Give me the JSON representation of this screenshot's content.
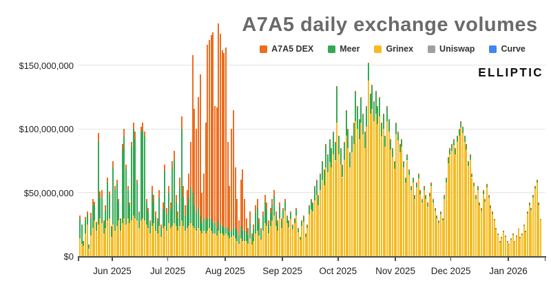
{
  "title": "A7A5 daily exchange volumes",
  "watermark": "ELLIPTIC",
  "legend": [
    {
      "label": "A7A5 DEX",
      "color": "#ED6C1E"
    },
    {
      "label": "Meer",
      "color": "#34A853"
    },
    {
      "label": "Grinex",
      "color": "#F5BB21"
    },
    {
      "label": "Uniswap",
      "color": "#9AA0A6"
    },
    {
      "label": "Curve",
      "color": "#4285F4"
    }
  ],
  "chart_data": {
    "type": "bar",
    "subtype": "stacked-daily-bars",
    "unit": "USD, values in millions",
    "start_date_approx": "2025-05-14",
    "frequency": "daily",
    "n_days": 250,
    "grid": true,
    "legend_position": "top-center",
    "ylim": [
      0,
      185000000
    ],
    "y_ticks": [
      {
        "label": "$0",
        "value_millions": 0
      },
      {
        "label": "$50,000,000",
        "value_millions": 50
      },
      {
        "label": "$100,000,000",
        "value_millions": 100
      },
      {
        "label": "$150,000,000",
        "value_millions": 150
      }
    ],
    "x_ticks": [
      {
        "label": "Jun 2025",
        "day_index": 18
      },
      {
        "label": "Jul 2025",
        "day_index": 48
      },
      {
        "label": "Aug 2025",
        "day_index": 79
      },
      {
        "label": "Sep 2025",
        "day_index": 110
      },
      {
        "label": "Oct 2025",
        "day_index": 140
      },
      {
        "label": "Nov 2025",
        "day_index": 171
      },
      {
        "label": "Dec 2025",
        "day_index": 201
      },
      {
        "label": "Jan 2026",
        "day_index": 232
      }
    ],
    "stack_order_bottom_to_top": [
      "Grinex",
      "Meer",
      "A7A5 DEX"
    ],
    "series": [
      {
        "name": "A7A5 DEX",
        "color": "#ED6C1E",
        "values_millions": [
          2,
          0,
          0,
          3,
          2,
          0,
          4,
          5,
          3,
          1,
          7,
          5,
          6,
          2,
          4,
          4,
          3,
          1,
          5,
          3,
          3,
          2,
          1,
          4,
          6,
          3,
          3,
          2,
          4,
          5,
          6,
          2,
          1,
          4,
          6,
          4,
          3,
          3,
          2,
          5,
          5,
          4,
          3,
          6,
          3,
          5,
          5,
          5,
          5,
          5,
          5,
          7,
          6,
          5,
          8,
          10,
          9,
          8,
          12,
          19,
          36,
          108,
          76,
          66,
          87,
          111,
          24,
          35,
          77,
          136,
          140,
          144,
          150,
          92,
          95,
          155,
          150,
          138,
          138,
          141,
          68,
          36,
          80,
          93,
          48,
          25,
          12,
          36,
          48,
          25,
          10,
          6,
          9,
          3,
          4,
          6,
          7,
          4,
          2,
          3,
          6,
          5,
          3,
          4,
          5,
          5,
          3,
          2,
          3,
          2,
          2,
          2,
          1,
          1,
          1,
          1,
          1,
          1,
          1,
          0,
          1,
          1,
          1,
          1,
          1,
          1,
          1,
          1,
          1,
          1,
          1,
          1,
          1,
          1,
          1,
          1,
          1,
          1,
          1,
          1,
          1,
          1,
          1,
          1,
          1,
          1,
          1,
          1,
          1,
          1,
          1,
          1,
          1,
          1,
          1,
          1,
          1,
          1,
          1,
          1,
          1,
          1,
          1,
          1,
          1,
          1,
          1,
          1,
          1,
          1,
          1,
          1,
          1,
          1,
          1,
          1,
          1,
          1,
          1,
          1,
          1,
          1,
          1,
          1,
          1,
          1,
          1,
          1,
          1,
          1,
          1,
          1,
          1,
          1,
          1,
          1,
          1,
          1,
          1,
          1,
          1,
          1,
          1,
          1,
          1,
          1,
          1,
          1,
          1,
          1,
          1,
          1,
          1,
          1,
          1,
          1,
          1,
          1,
          1,
          1,
          1,
          1,
          1,
          1,
          0.5,
          0.5,
          0.5,
          0.5,
          0.5,
          0.5,
          0.5,
          0.2,
          0.2,
          0.4,
          0.2,
          0.3,
          0.5,
          0.3,
          0.4,
          0.5,
          0.5,
          0.5,
          0.5,
          0.5,
          0.5,
          0.5,
          0.5,
          0.5,
          0.5
        ]
      },
      {
        "name": "Meer",
        "color": "#34A853",
        "values_millions": [
          16,
          15,
          4,
          10,
          8,
          3,
          14,
          18,
          12,
          6,
          65,
          16,
          20,
          8,
          14,
          30,
          18,
          8,
          45,
          32,
          33,
          15,
          9,
          58,
          64,
          44,
          22,
          14,
          58,
          68,
          62,
          30,
          12,
          70,
          69,
          66,
          17,
          13,
          8,
          26,
          17,
          11,
          9,
          22,
          7,
          15,
          43,
          13,
          24,
          15,
          46,
          50,
          18,
          10,
          30,
          72,
          22,
          12,
          18,
          22,
          28,
          26,
          18,
          14,
          16,
          12,
          8,
          10,
          10,
          10,
          8,
          10,
          8,
          8,
          6,
          8,
          7,
          6,
          6,
          5,
          6,
          5,
          5,
          6,
          8,
          8,
          6,
          10,
          8,
          8,
          8,
          6,
          12,
          6,
          9,
          16,
          18,
          10,
          7,
          12,
          16,
          13,
          7,
          10,
          12,
          15,
          8,
          6,
          9,
          6,
          6,
          7,
          5,
          4,
          5,
          3,
          3,
          5,
          2,
          2,
          3,
          4,
          2,
          2,
          6,
          7,
          6,
          10,
          11,
          7,
          12,
          14,
          11,
          17,
          13,
          17,
          14,
          17,
          14,
          28,
          14,
          12,
          9,
          13,
          19,
          14,
          11,
          12,
          16,
          23,
          17,
          15,
          19,
          15,
          12,
          15,
          13,
          15,
          18,
          15,
          17,
          13,
          14,
          10,
          11,
          8,
          11,
          9,
          7,
          6,
          5,
          8,
          6,
          5,
          5,
          4,
          3,
          4,
          3,
          2,
          3,
          2,
          3,
          3,
          2,
          2,
          2,
          2,
          2,
          2,
          2,
          2,
          1,
          1,
          1,
          1,
          1,
          2,
          3,
          4,
          4,
          4,
          4,
          4,
          4,
          4,
          4,
          4,
          4,
          3,
          3,
          3,
          2,
          2,
          2,
          2,
          1,
          1,
          2,
          1,
          2,
          1,
          1,
          1,
          1,
          0.5,
          0.5,
          0.5,
          0.5,
          0.5,
          0.5,
          0.5,
          0.3,
          0.3,
          0.4,
          0.3,
          0.4,
          0.5,
          0.4,
          0.4,
          0.5,
          0.5,
          1,
          1.5,
          1,
          1.5,
          1.5,
          1.5,
          1.5,
          1
        ]
      },
      {
        "name": "Grinex",
        "color": "#F5BB21",
        "values_millions": [
          14,
          10,
          8,
          18,
          25,
          6,
          16,
          22,
          28,
          20,
          25,
          30,
          26,
          18,
          22,
          28,
          30,
          15,
          25,
          20,
          24,
          28,
          20,
          26,
          30,
          25,
          30,
          26,
          28,
          32,
          30,
          28,
          22,
          28,
          30,
          28,
          25,
          22,
          18,
          24,
          26,
          20,
          18,
          24,
          15,
          22,
          24,
          20,
          26,
          22,
          24,
          26,
          24,
          20,
          24,
          28,
          24,
          20,
          22,
          24,
          26,
          24,
          22,
          20,
          22,
          20,
          18,
          20,
          18,
          20,
          22,
          20,
          18,
          18,
          16,
          20,
          18,
          18,
          16,
          18,
          16,
          14,
          15,
          16,
          14,
          12,
          10,
          14,
          12,
          12,
          12,
          10,
          14,
          9,
          12,
          18,
          20,
          16,
          13,
          20,
          26,
          24,
          18,
          24,
          28,
          32,
          24,
          20,
          30,
          22,
          30,
          36,
          26,
          23,
          29,
          21,
          26,
          32,
          19,
          13,
          24,
          27,
          15,
          22,
          33,
          37,
          35,
          44,
          48,
          40,
          52,
          60,
          56,
          70,
          66,
          74,
          70,
          80,
          75,
          105,
          80,
          72,
          62,
          76,
          95,
          85,
          70,
          82,
          88,
          106,
          100,
          92,
          105,
          96,
          85,
          102,
          138,
          112,
          116,
          106,
          112,
          104,
          110,
          94,
          100,
          86,
          106,
          98,
          84,
          78,
          69,
          96,
          91,
          82,
          86,
          70,
          58,
          75,
          64,
          52,
          58,
          45,
          54,
          61,
          49,
          42,
          52,
          45,
          39,
          47,
          55,
          42,
          36,
          30,
          26,
          33,
          28,
          45,
          58,
          73,
          80,
          83,
          87,
          80,
          90,
          95,
          101,
          97,
          90,
          84,
          71,
          76,
          62,
          55,
          45,
          52,
          40,
          36,
          49,
          43,
          54,
          46,
          38,
          33,
          28,
          21,
          17,
          11,
          14,
          19,
          15,
          11,
          9.5,
          13.5,
          17.2,
          11.5,
          15.3,
          21,
          14.3,
          17.2,
          24,
          19,
          33.5,
          40,
          36.5,
          46,
          53,
          58,
          40,
          28.5
        ]
      },
      {
        "name": "Uniswap",
        "color": "#9AA0A6",
        "values_millions": [],
        "visible": false,
        "note": "no visible volume in chart"
      },
      {
        "name": "Curve",
        "color": "#4285F4",
        "values_millions": [],
        "visible": false,
        "note": "no visible volume in chart"
      }
    ]
  }
}
